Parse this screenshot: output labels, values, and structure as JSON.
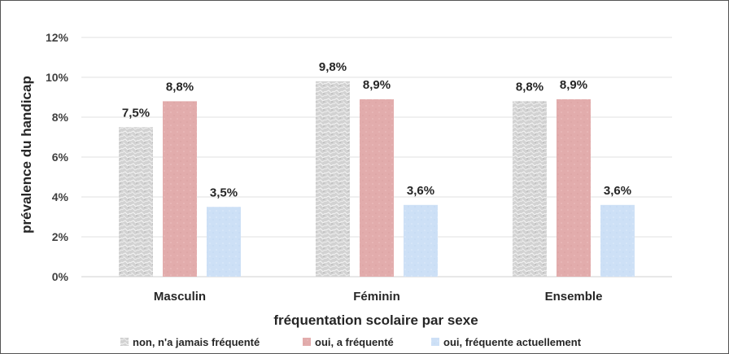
{
  "chart_data": {
    "type": "bar",
    "categories": [
      "Masculin",
      "Féminin",
      "Ensemble"
    ],
    "series": [
      {
        "name": "non, n'a jamais fréquenté",
        "values": [
          7.5,
          9.8,
          8.8
        ],
        "labels": [
          "7,5%",
          "9,8%",
          "8,8%"
        ],
        "color": "#c8c8c8"
      },
      {
        "name": "oui, a fréquenté",
        "values": [
          8.8,
          8.9,
          8.9
        ],
        "labels": [
          "8,8%",
          "8,9%",
          "8,9%"
        ],
        "color": "#e3aeae"
      },
      {
        "name": "oui, fréquente actuellement",
        "values": [
          3.5,
          3.6,
          3.6
        ],
        "labels": [
          "3,5%",
          "3,6%",
          "3,6%"
        ],
        "color": "#cfe1f6"
      }
    ],
    "xlabel": "fréquentation scolaire par sexe",
    "ylabel": "prévalence du handicap",
    "ylim": [
      0,
      12
    ],
    "yticks": [
      0,
      2,
      4,
      6,
      8,
      10,
      12
    ],
    "ytick_labels": [
      "0%",
      "2%",
      "4%",
      "6%",
      "8%",
      "10%",
      "12%"
    ],
    "grid": true,
    "legend_position": "bottom"
  }
}
